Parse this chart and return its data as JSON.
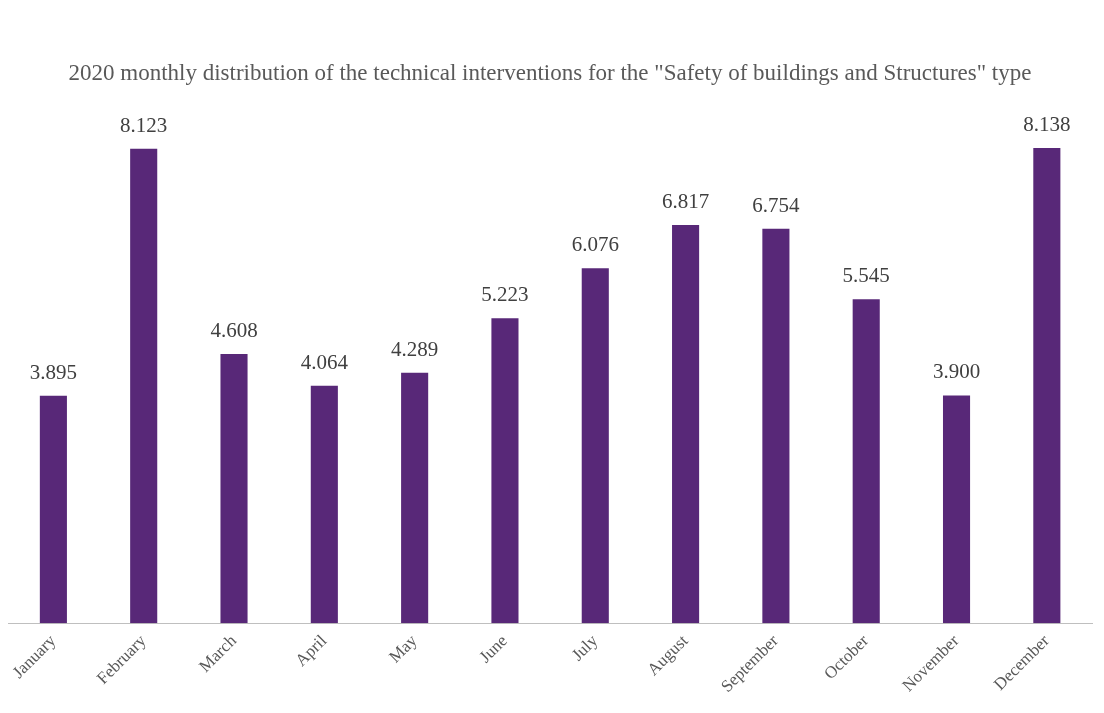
{
  "chart_data": {
    "type": "bar",
    "title": "2020 monthly distribution of the technical interventions for the \"Safety of buildings and Structures\" type",
    "categories": [
      "January",
      "February",
      "March",
      "April",
      "May",
      "June",
      "July",
      "August",
      "September",
      "October",
      "November",
      "December"
    ],
    "values": [
      3.895,
      8.123,
      4.608,
      4.064,
      4.289,
      5.223,
      6.076,
      6.817,
      6.754,
      5.545,
      3.9,
      8.138
    ],
    "value_labels": [
      "3.895",
      "8.123",
      "4.608",
      "4.064",
      "4.289",
      "5.223",
      "6.076",
      "6.817",
      "6.754",
      "5.545",
      "3.900",
      "8.138"
    ],
    "color": "#582878",
    "grid": false,
    "legend": false
  }
}
